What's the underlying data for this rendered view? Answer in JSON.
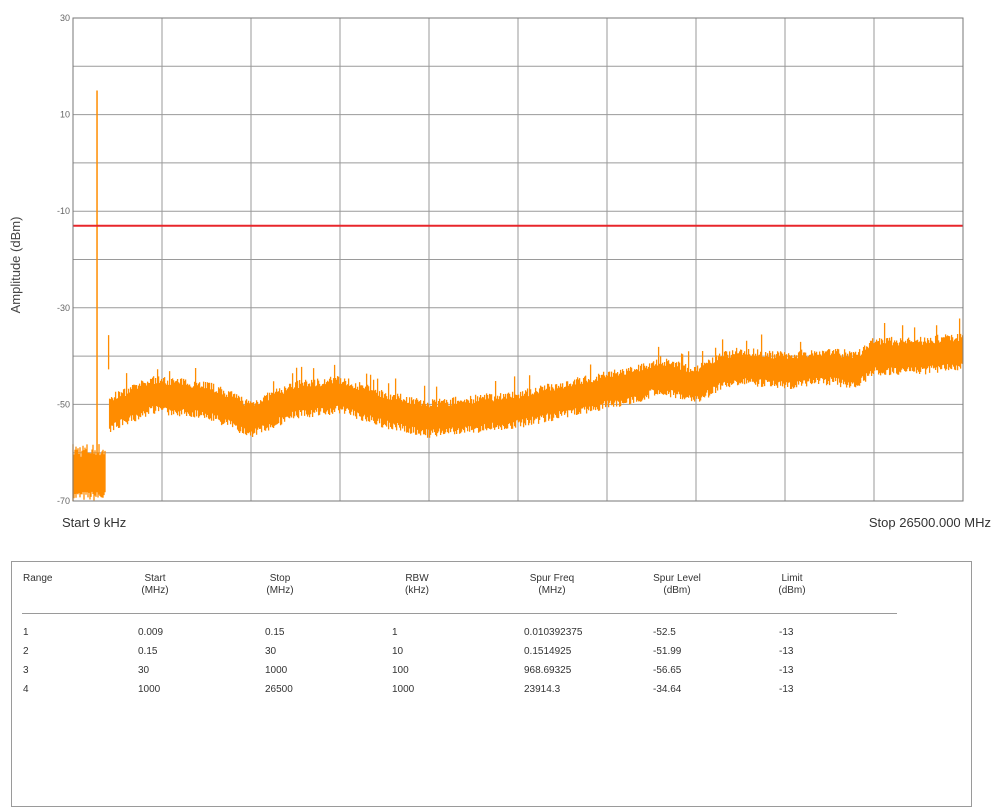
{
  "chart_data": {
    "type": "line",
    "title": "",
    "ylabel": "Amplitude (dBm)",
    "xlabel": "",
    "x_start_label": "Start 9 kHz",
    "x_stop_label": "Stop 26500.000 MHz",
    "x_range_mhz": [
      0.009,
      26500
    ],
    "ylim": [
      -70,
      30
    ],
    "y_ticks": [
      30,
      10,
      -10,
      -30,
      -50,
      -70
    ],
    "grid": true,
    "limit_line": {
      "value": -13,
      "color": "#e8262b"
    },
    "series": [
      {
        "color": "#ff8c00",
        "spike": {
          "x_fraction": 0.027,
          "value": 15
        },
        "low_segment": {
          "x_fraction_range": [
            0.0,
            0.037
          ],
          "value_range": [
            -70,
            -60
          ]
        },
        "envelope": [
          {
            "x_fraction": 0.04,
            "value": -52
          },
          {
            "x_fraction": 0.09,
            "value": -48
          },
          {
            "x_fraction": 0.15,
            "value": -49
          },
          {
            "x_fraction": 0.2,
            "value": -53
          },
          {
            "x_fraction": 0.25,
            "value": -49
          },
          {
            "x_fraction": 0.3,
            "value": -48
          },
          {
            "x_fraction": 0.35,
            "value": -51
          },
          {
            "x_fraction": 0.4,
            "value": -53
          },
          {
            "x_fraction": 0.45,
            "value": -52
          },
          {
            "x_fraction": 0.5,
            "value": -51
          },
          {
            "x_fraction": 0.55,
            "value": -49
          },
          {
            "x_fraction": 0.6,
            "value": -47
          },
          {
            "x_fraction": 0.63,
            "value": -46
          },
          {
            "x_fraction": 0.66,
            "value": -44
          },
          {
            "x_fraction": 0.7,
            "value": -46
          },
          {
            "x_fraction": 0.73,
            "value": -43
          },
          {
            "x_fraction": 0.75,
            "value": -42
          },
          {
            "x_fraction": 0.8,
            "value": -43
          },
          {
            "x_fraction": 0.85,
            "value": -42
          },
          {
            "x_fraction": 0.88,
            "value": -43
          },
          {
            "x_fraction": 0.9,
            "value": -40
          },
          {
            "x_fraction": 0.95,
            "value": -40
          },
          {
            "x_fraction": 1.0,
            "value": -39
          }
        ]
      }
    ]
  },
  "table": {
    "headers": [
      "Range",
      "Start\n(MHz)",
      "Stop\n(MHz)",
      "RBW\n(kHz)",
      "Spur Freq\n(MHz)",
      "Spur Level\n(dBm)",
      "Limit\n(dBm)"
    ],
    "rows": [
      [
        "1",
        "0.009",
        "0.15",
        "1",
        "0.010392375",
        "-52.5",
        "-13"
      ],
      [
        "2",
        "0.15",
        "30",
        "10",
        "0.1514925",
        "-51.99",
        "-13"
      ],
      [
        "3",
        "30",
        "1000",
        "100",
        "968.69325",
        "-56.65",
        "-13"
      ],
      [
        "4",
        "1000",
        "26500",
        "1000",
        "23914.3",
        "-34.64",
        "-13"
      ]
    ]
  }
}
